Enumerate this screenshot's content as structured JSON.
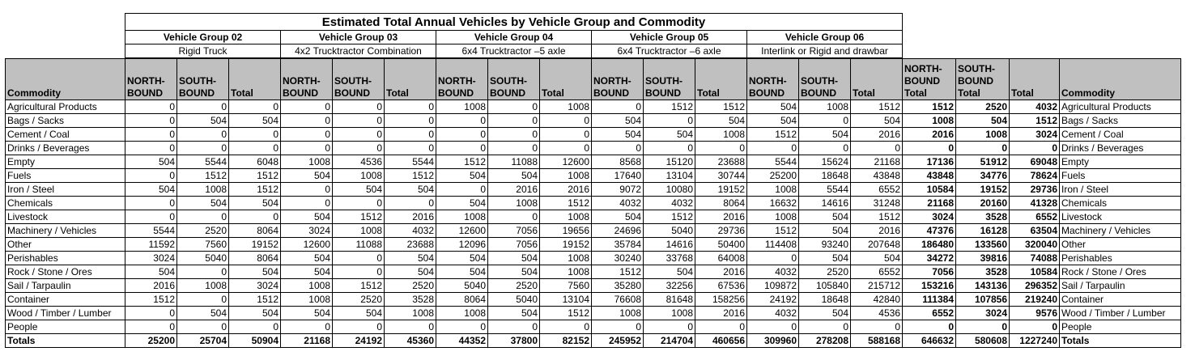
{
  "title": "Estimated Total Annual Vehicles by Vehicle Group and Commodity",
  "groups": [
    {
      "name": "Vehicle Group 02",
      "desc": "Rigid Truck"
    },
    {
      "name": "Vehicle Group 03",
      "desc": "4x2 Trucktractor Combination"
    },
    {
      "name": "Vehicle Group 04",
      "desc": "6x4 Trucktractor –5 axle"
    },
    {
      "name": "Vehicle Group 05",
      "desc": "6x4 Trucktractor –6 axle"
    },
    {
      "name": "Vehicle Group 06",
      "desc": "Interlink or Rigid and drawbar"
    }
  ],
  "columns": {
    "commodity": "Commodity",
    "north": "NORTH-\nBOUND",
    "south": "SOUTH-\nBOUND",
    "total": "Total",
    "north_total": "NORTH-\nBOUND\nTotal",
    "south_total": "SOUTH-\nBOUND\nTotal",
    "grand_total": "Total",
    "commodity_right": "Commodity"
  },
  "rows": [
    {
      "commodity": "Agricultural Products",
      "values": [
        "0",
        "0",
        "0",
        "0",
        "0",
        "0",
        "1008",
        "0",
        "1008",
        "0",
        "1512",
        "1512",
        "504",
        "1008",
        "1512"
      ],
      "totals": [
        "1512",
        "2520",
        "4032"
      ]
    },
    {
      "commodity": "Bags / Sacks",
      "values": [
        "0",
        "504",
        "504",
        "0",
        "0",
        "0",
        "0",
        "0",
        "0",
        "504",
        "0",
        "504",
        "504",
        "0",
        "504"
      ],
      "totals": [
        "1008",
        "504",
        "1512"
      ]
    },
    {
      "commodity": "Cement / Coal",
      "values": [
        "0",
        "0",
        "0",
        "0",
        "0",
        "0",
        "0",
        "0",
        "0",
        "504",
        "504",
        "1008",
        "1512",
        "504",
        "2016"
      ],
      "totals": [
        "2016",
        "1008",
        "3024"
      ]
    },
    {
      "commodity": "Drinks / Beverages",
      "values": [
        "0",
        "0",
        "0",
        "0",
        "0",
        "0",
        "0",
        "0",
        "0",
        "0",
        "0",
        "0",
        "0",
        "0",
        "0"
      ],
      "totals": [
        "0",
        "0",
        "0"
      ]
    },
    {
      "commodity": "Empty",
      "values": [
        "504",
        "5544",
        "6048",
        "1008",
        "4536",
        "5544",
        "1512",
        "11088",
        "12600",
        "8568",
        "15120",
        "23688",
        "5544",
        "15624",
        "21168"
      ],
      "totals": [
        "17136",
        "51912",
        "69048"
      ]
    },
    {
      "commodity": "Fuels",
      "values": [
        "0",
        "1512",
        "1512",
        "504",
        "1008",
        "1512",
        "504",
        "504",
        "1008",
        "17640",
        "13104",
        "30744",
        "25200",
        "18648",
        "43848"
      ],
      "totals": [
        "43848",
        "34776",
        "78624"
      ]
    },
    {
      "commodity": "Iron / Steel",
      "values": [
        "504",
        "1008",
        "1512",
        "0",
        "504",
        "504",
        "0",
        "2016",
        "2016",
        "9072",
        "10080",
        "19152",
        "1008",
        "5544",
        "6552"
      ],
      "totals": [
        "10584",
        "19152",
        "29736"
      ]
    },
    {
      "commodity": "Chemicals",
      "values": [
        "0",
        "504",
        "504",
        "0",
        "0",
        "0",
        "504",
        "1008",
        "1512",
        "4032",
        "4032",
        "8064",
        "16632",
        "14616",
        "31248"
      ],
      "totals": [
        "21168",
        "20160",
        "41328"
      ]
    },
    {
      "commodity": "Livestock",
      "values": [
        "0",
        "0",
        "0",
        "504",
        "1512",
        "2016",
        "1008",
        "0",
        "1008",
        "504",
        "1512",
        "2016",
        "1008",
        "504",
        "1512"
      ],
      "totals": [
        "3024",
        "3528",
        "6552"
      ]
    },
    {
      "commodity": "Machinery / Vehicles",
      "values": [
        "5544",
        "2520",
        "8064",
        "3024",
        "1008",
        "4032",
        "12600",
        "7056",
        "19656",
        "24696",
        "5040",
        "29736",
        "1512",
        "504",
        "2016"
      ],
      "totals": [
        "47376",
        "16128",
        "63504"
      ]
    },
    {
      "commodity": "Other",
      "values": [
        "11592",
        "7560",
        "19152",
        "12600",
        "11088",
        "23688",
        "12096",
        "7056",
        "19152",
        "35784",
        "14616",
        "50400",
        "114408",
        "93240",
        "207648"
      ],
      "totals": [
        "186480",
        "133560",
        "320040"
      ]
    },
    {
      "commodity": "Perishables",
      "values": [
        "3024",
        "5040",
        "8064",
        "504",
        "0",
        "504",
        "504",
        "504",
        "1008",
        "30240",
        "33768",
        "64008",
        "0",
        "504",
        "504"
      ],
      "totals": [
        "34272",
        "39816",
        "74088"
      ]
    },
    {
      "commodity": "Rock / Stone / Ores",
      "values": [
        "504",
        "0",
        "504",
        "504",
        "0",
        "504",
        "504",
        "504",
        "1008",
        "1512",
        "504",
        "2016",
        "4032",
        "2520",
        "6552"
      ],
      "totals": [
        "7056",
        "3528",
        "10584"
      ]
    },
    {
      "commodity": "Sail / Tarpaulin",
      "values": [
        "2016",
        "1008",
        "3024",
        "1008",
        "1512",
        "2520",
        "5040",
        "2520",
        "7560",
        "35280",
        "32256",
        "67536",
        "109872",
        "105840",
        "215712"
      ],
      "totals": [
        "153216",
        "143136",
        "296352"
      ]
    },
    {
      "commodity": "Container",
      "values": [
        "1512",
        "0",
        "1512",
        "1008",
        "2520",
        "3528",
        "8064",
        "5040",
        "13104",
        "76608",
        "81648",
        "158256",
        "24192",
        "18648",
        "42840"
      ],
      "totals": [
        "111384",
        "107856",
        "219240"
      ]
    },
    {
      "commodity": "Wood / Timber / Lumber",
      "values": [
        "0",
        "504",
        "504",
        "504",
        "504",
        "1008",
        "1008",
        "504",
        "1512",
        "1008",
        "1008",
        "2016",
        "4032",
        "504",
        "4536"
      ],
      "totals": [
        "6552",
        "3024",
        "9576"
      ]
    },
    {
      "commodity": "People",
      "values": [
        "0",
        "0",
        "0",
        "0",
        "0",
        "0",
        "0",
        "0",
        "0",
        "0",
        "0",
        "0",
        "0",
        "0",
        "0"
      ],
      "totals": [
        "0",
        "0",
        "0"
      ]
    }
  ],
  "totals_row": {
    "label": "Totals",
    "values": [
      "25200",
      "25704",
      "50904",
      "21168",
      "24192",
      "45360",
      "44352",
      "37800",
      "82152",
      "245952",
      "214704",
      "460656",
      "309960",
      "278208",
      "588168"
    ],
    "totals": [
      "646632",
      "580608",
      "1227240"
    ]
  }
}
